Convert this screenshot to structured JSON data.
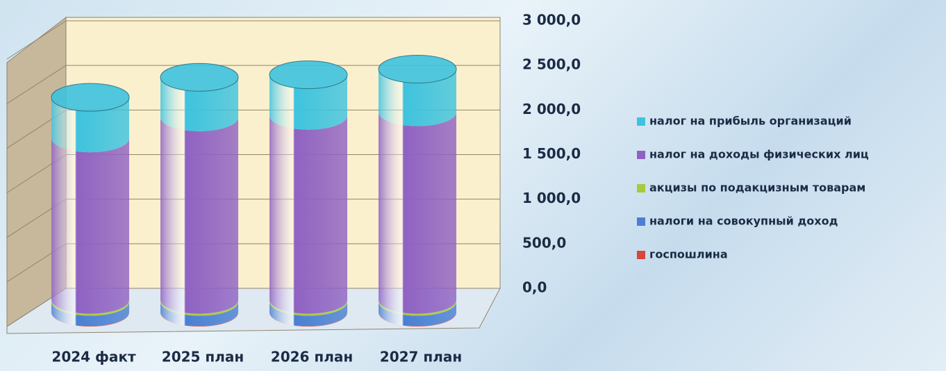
{
  "chart_data": {
    "type": "bar",
    "categories": [
      "2024 факт",
      "2025 план",
      "2026 план",
      "2027 план"
    ],
    "series": [
      {
        "name": "налог на прибыль организаций",
        "color": "#3ec3de",
        "values": [
          400,
          390,
          400,
          420
        ]
      },
      {
        "name": "налог на доходы физических лиц",
        "color": "#8f62c2",
        "values": [
          1575,
          1780,
          1795,
          1830
        ]
      },
      {
        "name": "акцизы по подакцизным товарам",
        "color": "#a9c93d",
        "values": [
          20,
          20,
          20,
          20
        ]
      },
      {
        "name": "налоги на совокупный доход",
        "color": "#4a7fd2",
        "values": [
          100,
          100,
          100,
          100
        ]
      },
      {
        "name": "госпошлина",
        "color": "#d9443c",
        "values": [
          5,
          5,
          5,
          5
        ]
      }
    ],
    "ylim": [
      0,
      3000
    ],
    "yticks": [
      {
        "value": 0,
        "label": "0,0"
      },
      {
        "value": 500,
        "label": "500,0"
      },
      {
        "value": 1000,
        "label": "1 000,0"
      },
      {
        "value": 1500,
        "label": "1 500,0"
      },
      {
        "value": 2000,
        "label": "2 000,0"
      },
      {
        "value": 2500,
        "label": "2 500,0"
      },
      {
        "value": 3000,
        "label": "3 000,0"
      }
    ],
    "grid": true,
    "stacked": true,
    "legend": "right"
  }
}
